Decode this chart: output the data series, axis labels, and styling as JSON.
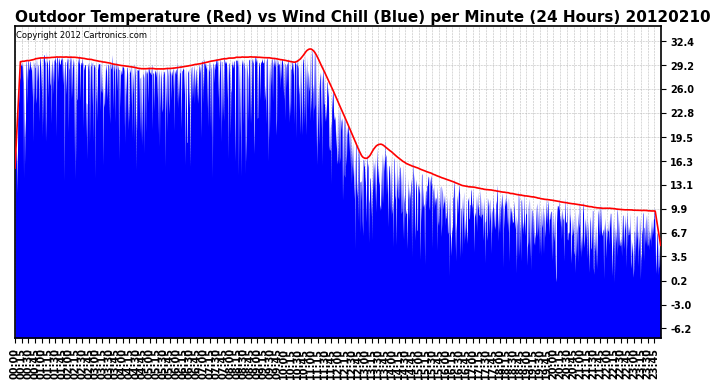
{
  "title": "Outdoor Temperature (Red) vs Wind Chill (Blue) per Minute (24 Hours) 20120210",
  "copyright_text": "Copyright 2012 Cartronics.com",
  "yticks": [
    32.4,
    29.2,
    26.0,
    22.8,
    19.5,
    16.3,
    13.1,
    9.9,
    6.7,
    3.5,
    0.2,
    -3.0,
    -6.2
  ],
  "ylim": [
    -7.5,
    34.5
  ],
  "background_color": "#ffffff",
  "grid_color": "#aaaaaa",
  "red_line_color": "#ff0000",
  "blue_color": "#0000ff",
  "title_fontsize": 11,
  "tick_label_fontsize": 7,
  "minutes_per_day": 1440
}
